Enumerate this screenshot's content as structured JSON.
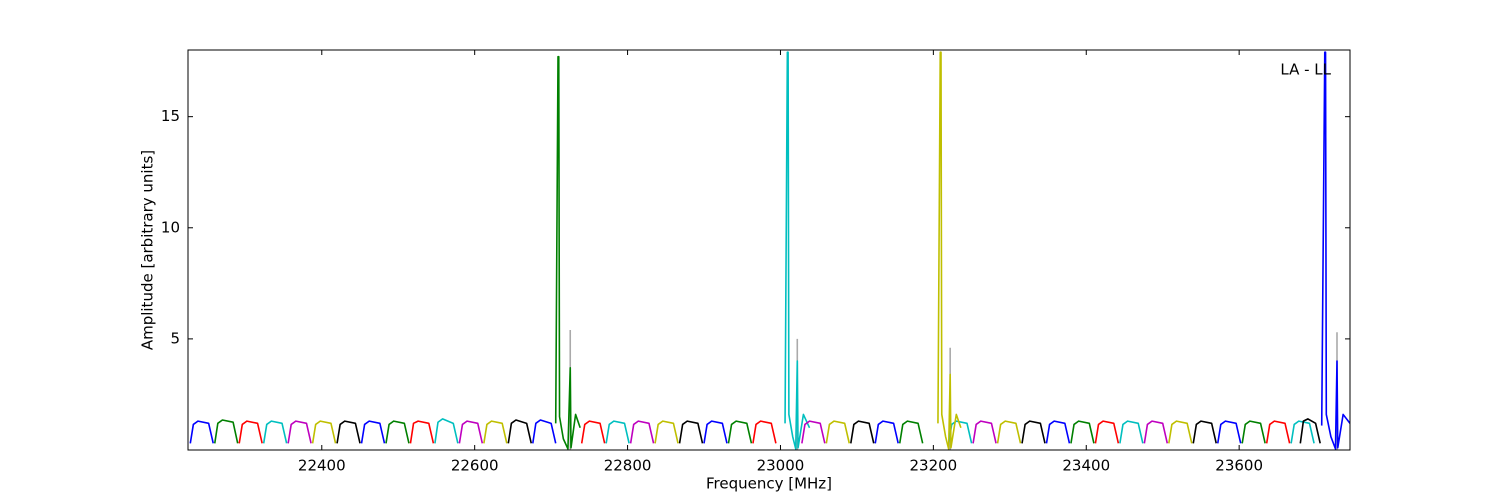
{
  "chart_data": {
    "type": "line",
    "annotation": "LA - LL",
    "xlabel": "Frequency [MHz]",
    "ylabel": "Amplitude [arbitrary units]",
    "xlim": [
      22225,
      23745
    ],
    "ylim": [
      0,
      18
    ],
    "xticks": [
      22400,
      22600,
      22800,
      23000,
      23200,
      23400,
      23600
    ],
    "yticks": [
      5,
      10,
      15
    ],
    "grid": false,
    "series": [
      {
        "color": "#aaaaaa",
        "x": [
          22725,
          22725,
          22726,
          23022,
          23022,
          23023,
          23222,
          23222,
          23223,
          23728,
          23728
        ],
        "values": [
          0,
          5.4,
          null,
          0,
          5.0,
          null,
          0,
          4.6,
          null,
          0,
          5.3
        ]
      },
      {
        "color": "#0000ff",
        "x": [
          22228,
          22232,
          22238,
          22252,
          22258,
          22259,
          22452,
          22456,
          22462,
          22476,
          22482,
          22483,
          22676,
          22680,
          22686,
          22700,
          22706,
          22707,
          22900,
          22904,
          22910,
          22924,
          22930,
          22931,
          23124,
          23128,
          23134,
          23148,
          23154,
          23155,
          23348,
          23352,
          23358,
          23372,
          23378,
          23379,
          23572,
          23576,
          23582,
          23596,
          23602,
          23603,
          23708,
          23712,
          23713,
          23714,
          23720,
          23726,
          23728,
          23729,
          23736,
          23745
        ],
        "values": [
          0.3,
          1.15,
          1.3,
          1.2,
          0.3,
          null,
          0.3,
          1.15,
          1.3,
          1.2,
          0.3,
          null,
          0.3,
          1.2,
          1.35,
          1.2,
          0.3,
          null,
          0.3,
          1.15,
          1.3,
          1.2,
          0.3,
          null,
          0.3,
          1.15,
          1.3,
          1.2,
          0.3,
          null,
          0.3,
          1.15,
          1.3,
          1.2,
          0.3,
          null,
          0.3,
          1.15,
          1.3,
          1.2,
          0.3,
          null,
          1.1,
          17.9,
          17.9,
          1.6,
          0.6,
          0.05,
          4.0,
          0.1,
          1.6,
          1.2
        ]
      },
      {
        "color": "#008000",
        "x": [
          22260,
          22264,
          22270,
          22284,
          22290,
          22291,
          22484,
          22488,
          22494,
          22508,
          22514,
          22515,
          22932,
          22936,
          22942,
          22956,
          22962,
          22963,
          23156,
          23160,
          23166,
          23180,
          23186,
          23187,
          23380,
          23384,
          23390,
          23404,
          23410,
          23411,
          23604,
          23608,
          23614,
          23628,
          23634,
          23635,
          22706,
          22709,
          22710,
          22711,
          22716,
          22722,
          22725,
          22726,
          22732,
          22738
        ],
        "values": [
          0.3,
          1.2,
          1.35,
          1.25,
          0.3,
          null,
          0.3,
          1.15,
          1.3,
          1.2,
          0.3,
          null,
          0.3,
          1.15,
          1.3,
          1.2,
          0.3,
          null,
          0.3,
          1.15,
          1.3,
          1.2,
          0.3,
          null,
          0.3,
          1.15,
          1.3,
          1.2,
          0.3,
          null,
          0.3,
          1.15,
          1.3,
          1.2,
          0.3,
          null,
          1.2,
          17.7,
          17.7,
          1.5,
          0.5,
          0.05,
          3.7,
          0.1,
          1.6,
          1.0
        ]
      },
      {
        "color": "#ff0000",
        "x": [
          22292,
          22296,
          22302,
          22316,
          22322,
          22323,
          22516,
          22520,
          22526,
          22540,
          22546,
          22547,
          22740,
          22744,
          22750,
          22764,
          22770,
          22771,
          22964,
          22968,
          22974,
          22988,
          22994,
          22995,
          23412,
          23416,
          23422,
          23436,
          23442,
          23443,
          23636,
          23640,
          23646,
          23660,
          23666,
          23667
        ],
        "values": [
          0.3,
          1.15,
          1.3,
          1.2,
          0.3,
          null,
          0.3,
          1.2,
          1.3,
          1.2,
          0.3,
          null,
          0.3,
          1.15,
          1.3,
          1.2,
          0.3,
          null,
          0.3,
          1.15,
          1.3,
          1.2,
          0.3,
          null,
          0.3,
          1.15,
          1.3,
          1.2,
          0.3,
          null,
          0.3,
          1.15,
          1.3,
          1.2,
          0.3,
          null
        ]
      },
      {
        "color": "#00bfbf",
        "x": [
          22324,
          22328,
          22334,
          22348,
          22354,
          22355,
          22548,
          22552,
          22558,
          22572,
          22578,
          22579,
          22772,
          22776,
          22782,
          22796,
          22802,
          22803,
          23220,
          23224,
          23230,
          23244,
          23250,
          23251,
          23444,
          23448,
          23454,
          23468,
          23474,
          23475,
          23668,
          23672,
          23678,
          23692,
          23698,
          23699,
          23006,
          23009,
          23010,
          23011,
          23016,
          23020,
          23022,
          23023,
          23030,
          23038
        ],
        "values": [
          0.3,
          1.15,
          1.3,
          1.2,
          0.3,
          null,
          0.3,
          1.25,
          1.4,
          1.2,
          0.3,
          null,
          0.3,
          1.15,
          1.3,
          1.2,
          0.3,
          null,
          0.3,
          1.15,
          1.3,
          1.2,
          0.3,
          null,
          0.3,
          1.15,
          1.3,
          1.2,
          0.3,
          null,
          0.3,
          1.15,
          1.3,
          1.2,
          0.3,
          null,
          1.2,
          17.9,
          17.9,
          1.6,
          0.6,
          0.05,
          4.0,
          0.1,
          1.6,
          1.0
        ]
      },
      {
        "color": "#bf00bf",
        "x": [
          22356,
          22360,
          22366,
          22380,
          22386,
          22387,
          22580,
          22584,
          22590,
          22604,
          22610,
          22611,
          22804,
          22808,
          22814,
          22828,
          22834,
          22835,
          23028,
          23032,
          23038,
          23052,
          23058,
          23059,
          23252,
          23256,
          23262,
          23276,
          23282,
          23283,
          23476,
          23480,
          23486,
          23500,
          23506,
          23507
        ],
        "values": [
          0.3,
          1.15,
          1.3,
          1.2,
          0.3,
          null,
          0.3,
          1.15,
          1.3,
          1.2,
          0.3,
          null,
          0.3,
          1.15,
          1.3,
          1.2,
          0.3,
          null,
          0.3,
          1.15,
          1.3,
          1.2,
          0.3,
          null,
          0.3,
          1.15,
          1.3,
          1.2,
          0.3,
          null,
          0.3,
          1.15,
          1.3,
          1.2,
          0.3,
          null
        ]
      },
      {
        "color": "#bfbf00",
        "x": [
          22388,
          22392,
          22398,
          22412,
          22418,
          22419,
          22612,
          22616,
          22622,
          22636,
          22642,
          22643,
          22836,
          22840,
          22846,
          22860,
          22866,
          22867,
          23060,
          23064,
          23070,
          23084,
          23090,
          23091,
          23284,
          23288,
          23294,
          23308,
          23314,
          23315,
          23508,
          23512,
          23518,
          23532,
          23538,
          23539,
          23206,
          23209,
          23210,
          23211,
          23216,
          23220,
          23222,
          23223,
          23230,
          23236
        ],
        "values": [
          0.3,
          1.15,
          1.3,
          1.2,
          0.3,
          null,
          0.3,
          1.15,
          1.3,
          1.2,
          0.3,
          null,
          0.3,
          1.15,
          1.3,
          1.2,
          0.3,
          null,
          0.3,
          1.15,
          1.3,
          1.2,
          0.3,
          null,
          0.3,
          1.15,
          1.3,
          1.2,
          0.3,
          null,
          0.3,
          1.15,
          1.3,
          1.2,
          0.3,
          null,
          1.2,
          17.9,
          17.9,
          1.6,
          0.6,
          0.05,
          3.4,
          0.1,
          1.6,
          1.0
        ]
      },
      {
        "color": "#000000",
        "x": [
          22420,
          22424,
          22430,
          22444,
          22450,
          22451,
          22644,
          22648,
          22654,
          22668,
          22674,
          22675,
          22868,
          22872,
          22878,
          22892,
          22898,
          22899,
          23092,
          23096,
          23102,
          23116,
          23122,
          23123,
          23316,
          23320,
          23326,
          23340,
          23346,
          23347,
          23540,
          23544,
          23550,
          23564,
          23570,
          23571,
          23680,
          23684,
          23690,
          23700,
          23706
        ],
        "values": [
          0.3,
          1.15,
          1.3,
          1.2,
          0.3,
          null,
          0.3,
          1.2,
          1.35,
          1.2,
          0.3,
          null,
          0.3,
          1.15,
          1.3,
          1.2,
          0.3,
          null,
          0.3,
          1.15,
          1.3,
          1.2,
          0.3,
          null,
          0.3,
          1.15,
          1.3,
          1.2,
          0.3,
          null,
          0.3,
          1.15,
          1.3,
          1.2,
          0.3,
          null,
          0.3,
          1.3,
          1.4,
          1.2,
          0.3
        ]
      }
    ]
  }
}
